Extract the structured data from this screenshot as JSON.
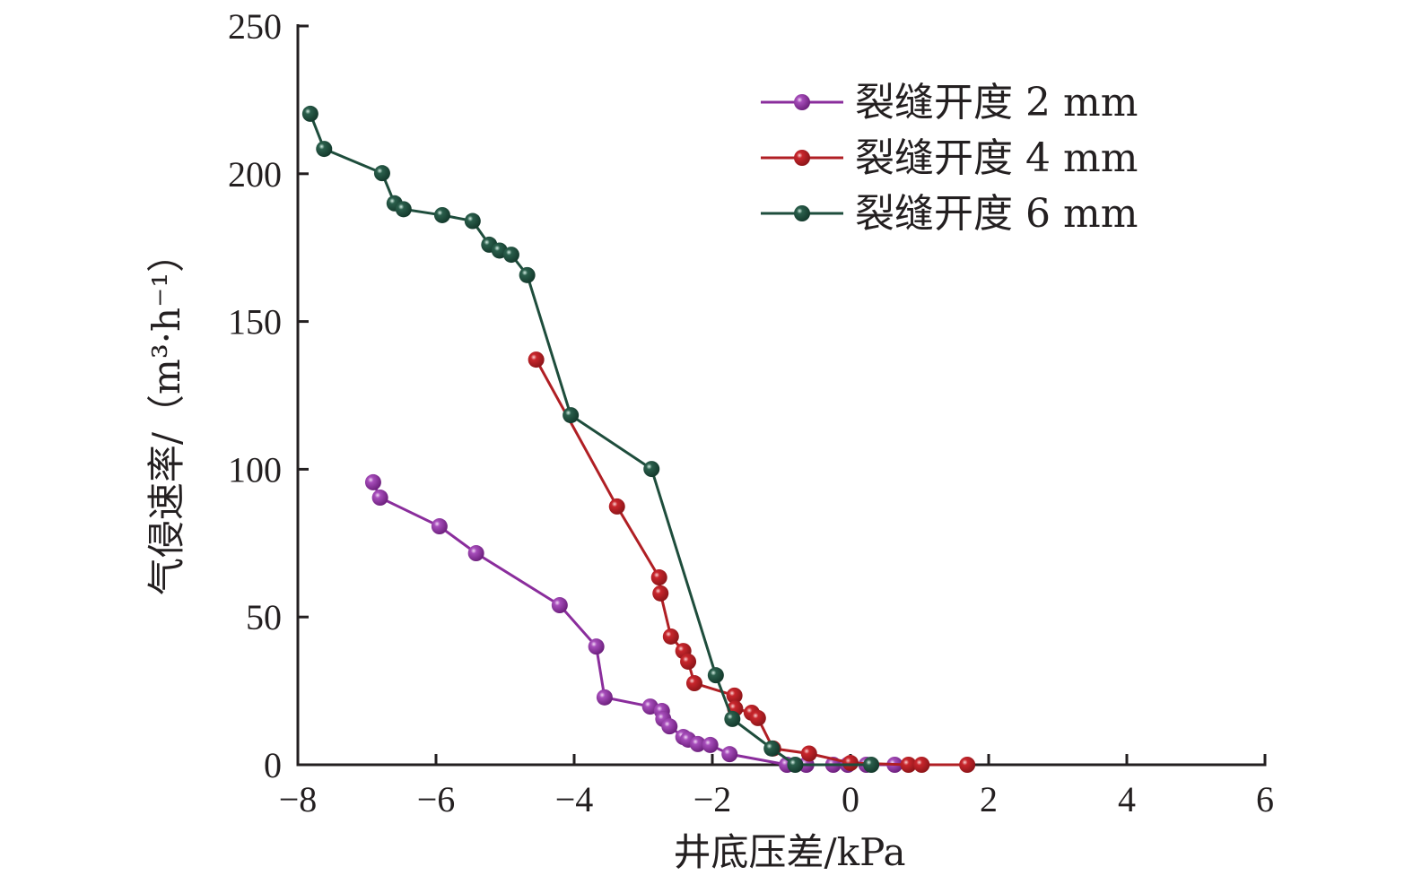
{
  "chart_data": {
    "type": "line",
    "title": "",
    "xlabel": "井底压差/kPa",
    "ylabel": "气侵速率/（m³·h⁻¹）",
    "xlim": [
      -8,
      6
    ],
    "ylim": [
      0,
      250
    ],
    "xticks": [
      -8,
      -6,
      -4,
      -2,
      0,
      2,
      4,
      6
    ],
    "xtick_labels": [
      "−8",
      "−6",
      "−4",
      "−2",
      "0",
      "2",
      "4",
      "6"
    ],
    "yticks": [
      0,
      50,
      100,
      150,
      200,
      250
    ],
    "ytick_labels": [
      "0",
      "50",
      "100",
      "150",
      "200",
      "250"
    ],
    "grid": false,
    "legend_position": "top-right",
    "series": [
      {
        "name": "裂缝开度 2 mm",
        "color": "#8a2d9c",
        "x": [
          -6.91,
          -6.81,
          -5.95,
          -5.42,
          -4.21,
          -3.68,
          -3.56,
          -2.9,
          -2.73,
          -2.71,
          -2.62,
          -2.42,
          -2.35,
          -2.21,
          -2.03,
          -1.75,
          -0.92,
          -0.64,
          -0.25,
          -0.04,
          0.23,
          0.64
        ],
        "y": [
          95.6,
          90.4,
          80.7,
          71.6,
          54,
          40,
          22.8,
          19.7,
          18.2,
          15.5,
          13,
          9.4,
          8.5,
          7,
          6.7,
          3.6,
          0,
          0,
          0,
          0,
          0,
          0
        ]
      },
      {
        "name": "裂缝开度 4 mm",
        "color": "#b01f24",
        "x": [
          -4.55,
          -3.38,
          -2.77,
          -2.75,
          -2.6,
          -2.42,
          -2.35,
          -2.26,
          -1.68,
          -1.67,
          -1.43,
          -1.34,
          -1.12,
          -0.6,
          0.0,
          0.84,
          1.03,
          1.69
        ],
        "y": [
          137.1,
          87.4,
          63.4,
          58,
          43.4,
          38.5,
          34.9,
          27.6,
          23.4,
          19,
          17.6,
          15.8,
          5.5,
          3.8,
          0.6,
          0,
          0,
          0
        ]
      },
      {
        "name": "裂缝开度 6 mm",
        "color": "#1e4d3c",
        "x": [
          -7.82,
          -7.62,
          -6.78,
          -6.6,
          -6.47,
          -5.91,
          -5.47,
          -5.23,
          -5.08,
          -4.91,
          -4.68,
          -4.05,
          -2.88,
          -1.95,
          -1.71,
          -1.14,
          -0.8,
          0.3
        ],
        "y": [
          220.3,
          208.4,
          200.2,
          190,
          188,
          186,
          184,
          176,
          174,
          172.6,
          165.7,
          118.3,
          100.1,
          30.3,
          15.5,
          5.5,
          0,
          0
        ]
      }
    ]
  }
}
